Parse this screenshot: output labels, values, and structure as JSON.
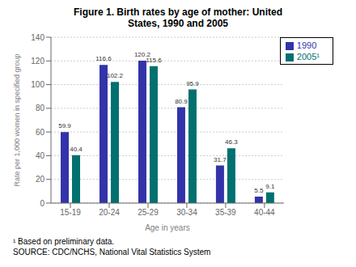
{
  "chart_data": {
    "type": "bar",
    "title": "Figure 1. Birth rates by age of mother: United\nStates, 1990 and 2005",
    "categories": [
      "15-19",
      "20-24",
      "25-29",
      "30-34",
      "35-39",
      "40-44"
    ],
    "series": [
      {
        "name": "1990",
        "color": "#3333AA",
        "values": [
          59.9,
          116.6,
          120.2,
          80.9,
          31.7,
          5.5
        ]
      },
      {
        "name": "2005¹",
        "color": "#007070",
        "values": [
          40.4,
          102.2,
          115.6,
          95.9,
          46.3,
          9.1
        ]
      }
    ],
    "xlabel": "Age in years",
    "ylabel": "Rate per 1,000 women in specified group",
    "ylim": [
      0,
      140
    ],
    "yticks": [
      0,
      20,
      40,
      60,
      80,
      100,
      120,
      140
    ],
    "grid": true,
    "legend": "upper right",
    "data_labels": true,
    "annotations": [
      "¹ Based on preliminary data.",
      "SOURCE: CDC/NCHS, National Vital Statistics System"
    ]
  }
}
